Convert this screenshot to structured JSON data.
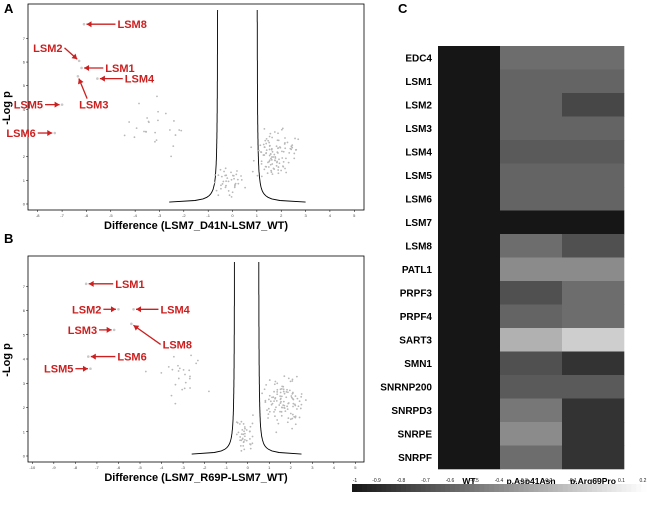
{
  "panels": {
    "A": {
      "letter": "A",
      "xlabel": "Difference (LSM7_D41N-LSM7_WT)",
      "ylabel": "-Log p",
      "xticks": [
        "-8",
        "-7",
        "-6",
        "-5",
        "-4",
        "-3",
        "-2",
        "-1",
        "0",
        "1",
        "2",
        "3",
        "4",
        "5"
      ],
      "yticks": [
        "0",
        "1",
        "2",
        "3",
        "4",
        "5",
        "6",
        "7"
      ],
      "labels": [
        {
          "text": "LSM8",
          "point": [
            -6.1,
            7.6
          ],
          "label": [
            -5.3,
            7.6
          ],
          "side": "right"
        },
        {
          "text": "LSM2",
          "point": [
            -6.3,
            6.05
          ],
          "label": [
            -6.9,
            6.6
          ],
          "side": "left"
        },
        {
          "text": "LSM1",
          "point": [
            -6.2,
            5.75
          ],
          "label": [
            -5.8,
            5.75
          ],
          "side": "right"
        },
        {
          "text": "LSM4",
          "point": [
            -5.55,
            5.3
          ],
          "label": [
            -5.0,
            5.3
          ],
          "side": "right"
        },
        {
          "text": "LSM3",
          "point": [
            -6.35,
            5.4
          ],
          "label": [
            -6.3,
            4.2
          ],
          "side": "below"
        },
        {
          "text": "LSM5",
          "point": [
            -7.0,
            4.2
          ],
          "label": [
            -7.7,
            4.2
          ],
          "side": "left"
        },
        {
          "text": "LSM6",
          "point": [
            -7.3,
            3.0
          ],
          "label": [
            -8.0,
            3.0
          ],
          "side": "left"
        }
      ]
    },
    "B": {
      "letter": "B",
      "xlabel": "Difference (LSM7_R69P-LSM7_WT)",
      "ylabel": "-Log p",
      "xticks": [
        "-10",
        "-9",
        "-8",
        "-7",
        "-6",
        "-5",
        "-4",
        "-3",
        "-2",
        "-1",
        "0",
        "1",
        "2",
        "3",
        "4",
        "5"
      ],
      "yticks": [
        "0",
        "1",
        "2",
        "3",
        "4",
        "5",
        "6",
        "7"
      ],
      "labels": [
        {
          "text": "LSM1",
          "point": [
            -7.5,
            7.1
          ],
          "label": [
            -6.8,
            7.1
          ],
          "side": "right"
        },
        {
          "text": "LSM2",
          "point": [
            -6.0,
            6.05
          ],
          "label": [
            -6.7,
            6.05
          ],
          "side": "left"
        },
        {
          "text": "LSM4",
          "point": [
            -5.3,
            6.05
          ],
          "label": [
            -4.7,
            6.05
          ],
          "side": "right"
        },
        {
          "text": "LSM3",
          "point": [
            -6.2,
            5.2
          ],
          "label": [
            -6.9,
            5.2
          ],
          "side": "left"
        },
        {
          "text": "LSM8",
          "point": [
            -5.4,
            5.45
          ],
          "label": [
            -4.6,
            4.6
          ],
          "side": "right"
        },
        {
          "text": "LSM6",
          "point": [
            -7.4,
            4.1
          ],
          "label": [
            -6.7,
            4.1
          ],
          "side": "right"
        },
        {
          "text": "LSM5",
          "point": [
            -7.3,
            3.6
          ],
          "label": [
            -8.0,
            3.6
          ],
          "side": "left"
        }
      ]
    },
    "C": {
      "letter": "C",
      "rows": [
        "EDC4",
        "LSM1",
        "LSM2",
        "LSM3",
        "LSM4",
        "LSM5",
        "LSM6",
        "LSM7",
        "LSM8",
        "PATL1",
        "PRPF3",
        "PRPF4",
        "SART3",
        "SMN1",
        "SNRNP200",
        "SNRPD3",
        "SNRPE",
        "SNRPF"
      ],
      "columns": [
        "WT",
        "p.Asp41Asn",
        "p.Arg69Pro"
      ],
      "values": [
        [
          -1.0,
          -0.55,
          -0.55
        ],
        [
          -1.0,
          -0.6,
          -0.6
        ],
        [
          -1.0,
          -0.6,
          -0.75
        ],
        [
          -1.0,
          -0.6,
          -0.6
        ],
        [
          -1.0,
          -0.65,
          -0.65
        ],
        [
          -1.0,
          -0.6,
          -0.6
        ],
        [
          -1.0,
          -0.6,
          -0.6
        ],
        [
          -1.0,
          -1.0,
          -1.0
        ],
        [
          -1.0,
          -0.55,
          -0.7
        ],
        [
          -1.0,
          -0.4,
          -0.4
        ],
        [
          -1.0,
          -0.7,
          -0.55
        ],
        [
          -1.0,
          -0.6,
          -0.55
        ],
        [
          -1.0,
          -0.2,
          -0.05
        ],
        [
          -1.0,
          -0.7,
          -0.85
        ],
        [
          -1.0,
          -0.65,
          -0.65
        ],
        [
          -1.0,
          -0.5,
          -0.85
        ],
        [
          -1.0,
          -0.4,
          -0.85
        ],
        [
          -1.0,
          -0.55,
          -0.85
        ]
      ],
      "colorbar_ticks": [
        "-1",
        "-0.9",
        "-0.8",
        "-0.7",
        "-0.6",
        "-0.5",
        "-0.4",
        "-0.3",
        "-0.2",
        "-0.1",
        "0",
        "0.1",
        "0.2"
      ],
      "colorbar_range": [
        -1,
        0.2
      ]
    }
  }
}
